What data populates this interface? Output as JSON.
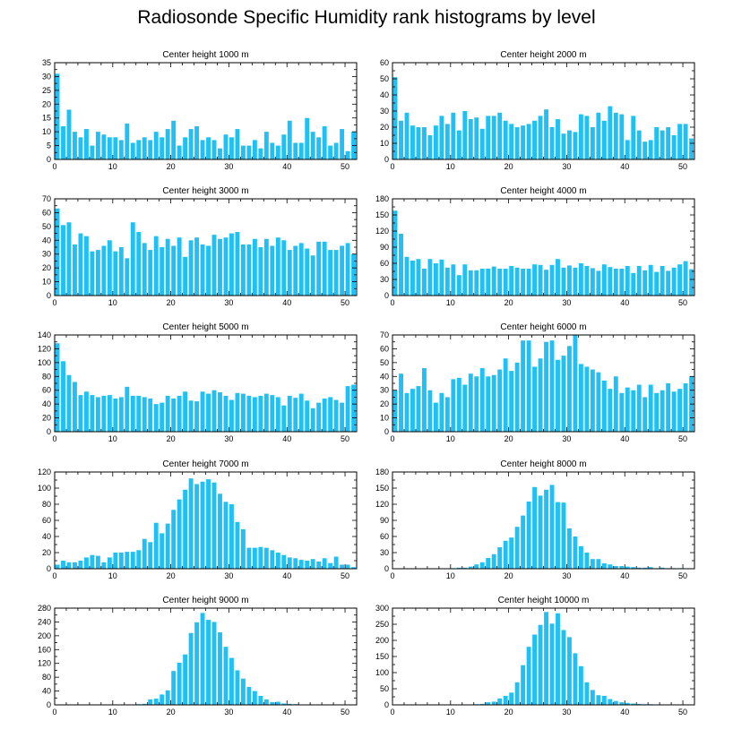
{
  "title": "Radiosonde Specific Humidity rank histograms by level",
  "colors": {
    "bar": "#1ec0f6",
    "axis": "#000000"
  },
  "chart_data": [
    {
      "type": "bar",
      "title": "Center height 1000 m",
      "xlabel": "",
      "ylabel": "",
      "xlim": [
        0,
        52
      ],
      "ylim": [
        0,
        35
      ],
      "yticks": [
        0,
        5,
        10,
        15,
        20,
        25,
        30,
        35
      ],
      "xticks": [
        0,
        10,
        20,
        30,
        40,
        50
      ],
      "values": [
        31,
        12,
        18,
        10,
        8,
        11,
        5,
        10,
        9,
        8,
        8,
        7,
        13,
        6,
        7,
        8,
        7,
        10,
        8,
        11,
        14,
        5,
        8,
        11,
        12,
        7,
        8,
        7,
        4,
        9,
        8,
        11,
        5,
        5,
        7,
        4,
        10,
        6,
        5,
        9,
        14,
        6,
        6,
        15,
        10,
        8,
        12,
        5,
        6,
        11,
        3,
        10
      ]
    },
    {
      "type": "bar",
      "title": "Center height 2000 m",
      "xlabel": "",
      "ylabel": "",
      "xlim": [
        0,
        52
      ],
      "ylim": [
        0,
        60
      ],
      "yticks": [
        0,
        10,
        20,
        30,
        40,
        50,
        60
      ],
      "xticks": [
        0,
        10,
        20,
        30,
        40,
        50
      ],
      "values": [
        51,
        24,
        29,
        21,
        20,
        20,
        15,
        21,
        27,
        22,
        29,
        18,
        30,
        25,
        26,
        19,
        27,
        27,
        29,
        24,
        22,
        20,
        21,
        22,
        24,
        27,
        31,
        20,
        25,
        16,
        18,
        17,
        28,
        27,
        20,
        29,
        24,
        33,
        29,
        28,
        12,
        27,
        18,
        11,
        12,
        20,
        18,
        20,
        15,
        22,
        22,
        13
      ]
    },
    {
      "type": "bar",
      "title": "Center height 3000 m",
      "xlabel": "",
      "ylabel": "",
      "xlim": [
        0,
        52
      ],
      "ylim": [
        0,
        70
      ],
      "yticks": [
        0,
        10,
        20,
        30,
        40,
        50,
        60,
        70
      ],
      "xticks": [
        0,
        10,
        20,
        30,
        40,
        50
      ],
      "values": [
        63,
        51,
        53,
        37,
        45,
        43,
        32,
        33,
        36,
        40,
        32,
        35,
        27,
        53,
        46,
        38,
        33,
        43,
        35,
        41,
        36,
        42,
        28,
        40,
        42,
        37,
        36,
        44,
        41,
        42,
        45,
        46,
        37,
        37,
        41,
        35,
        41,
        36,
        42,
        40,
        33,
        36,
        38,
        34,
        29,
        39,
        39,
        33,
        33,
        36,
        38,
        30
      ]
    },
    {
      "type": "bar",
      "title": "Center height 4000 m",
      "xlabel": "",
      "ylabel": "",
      "xlim": [
        0,
        52
      ],
      "ylim": [
        0,
        180
      ],
      "yticks": [
        0,
        30,
        60,
        90,
        120,
        150,
        180
      ],
      "xticks": [
        0,
        10,
        20,
        30,
        40,
        50
      ],
      "values": [
        158,
        115,
        72,
        65,
        68,
        50,
        68,
        60,
        67,
        52,
        58,
        38,
        58,
        47,
        47,
        50,
        50,
        54,
        50,
        50,
        55,
        52,
        50,
        50,
        58,
        57,
        48,
        57,
        68,
        52,
        56,
        52,
        60,
        55,
        51,
        46,
        58,
        53,
        50,
        50,
        55,
        42,
        55,
        47,
        57,
        44,
        55,
        46,
        52,
        58,
        64,
        49
      ]
    },
    {
      "type": "bar",
      "title": "Center height 5000 m",
      "xlabel": "",
      "ylabel": "",
      "xlim": [
        0,
        52
      ],
      "ylim": [
        0,
        140
      ],
      "yticks": [
        0,
        20,
        40,
        60,
        80,
        100,
        120,
        140
      ],
      "xticks": [
        0,
        10,
        20,
        30,
        40,
        50
      ],
      "values": [
        128,
        102,
        82,
        72,
        53,
        58,
        53,
        50,
        52,
        53,
        48,
        50,
        65,
        52,
        52,
        50,
        48,
        40,
        42,
        52,
        48,
        52,
        58,
        45,
        44,
        58,
        55,
        60,
        57,
        52,
        46,
        56,
        55,
        52,
        50,
        52,
        55,
        53,
        50,
        38,
        52,
        49,
        55,
        45,
        34,
        42,
        48,
        50,
        46,
        42,
        66,
        68
      ]
    },
    {
      "type": "bar",
      "title": "Center height 6000 m",
      "xlabel": "",
      "ylabel": "",
      "xlim": [
        0,
        52
      ],
      "ylim": [
        0,
        70
      ],
      "yticks": [
        0,
        10,
        20,
        30,
        40,
        50,
        60,
        70
      ],
      "xticks": [
        0,
        10,
        20,
        30,
        40,
        50
      ],
      "values": [
        30,
        42,
        28,
        31,
        33,
        46,
        30,
        21,
        28,
        25,
        38,
        39,
        34,
        42,
        40,
        46,
        40,
        41,
        45,
        53,
        44,
        50,
        66,
        66,
        47,
        53,
        65,
        66,
        52,
        55,
        62,
        70,
        49,
        47,
        45,
        43,
        37,
        31,
        40,
        28,
        32,
        30,
        34,
        25,
        34,
        28,
        30,
        35,
        29,
        31,
        35,
        40
      ]
    },
    {
      "type": "bar",
      "title": "Center height 7000 m",
      "xlabel": "",
      "ylabel": "",
      "xlim": [
        0,
        52
      ],
      "ylim": [
        0,
        120
      ],
      "yticks": [
        0,
        20,
        40,
        60,
        80,
        100,
        120
      ],
      "xticks": [
        0,
        10,
        20,
        30,
        40,
        50
      ],
      "values": [
        5,
        10,
        8,
        8,
        10,
        14,
        17,
        16,
        8,
        14,
        20,
        20,
        21,
        21,
        23,
        37,
        33,
        57,
        44,
        56,
        73,
        86,
        98,
        112,
        105,
        108,
        111,
        107,
        93,
        83,
        80,
        58,
        49,
        26,
        26,
        27,
        26,
        23,
        20,
        17,
        14,
        13,
        11,
        10,
        12,
        9,
        13,
        7,
        15,
        5,
        5,
        2
      ]
    },
    {
      "type": "bar",
      "title": "Center height 8000 m",
      "xlabel": "",
      "ylabel": "",
      "xlim": [
        0,
        52
      ],
      "ylim": [
        0,
        180
      ],
      "yticks": [
        0,
        30,
        60,
        90,
        120,
        150,
        180
      ],
      "xticks": [
        0,
        10,
        20,
        30,
        40,
        50
      ],
      "values": [
        0,
        0,
        0,
        0,
        0,
        0,
        0,
        0,
        0,
        0,
        1,
        2,
        2,
        4,
        8,
        12,
        20,
        27,
        40,
        52,
        58,
        78,
        99,
        125,
        152,
        136,
        147,
        156,
        124,
        123,
        75,
        60,
        42,
        30,
        18,
        18,
        10,
        8,
        5,
        5,
        4,
        3,
        2,
        2,
        3,
        1,
        2,
        1,
        1,
        1,
        0,
        0
      ]
    },
    {
      "type": "bar",
      "title": "Center height 9000 m",
      "xlabel": "",
      "ylabel": "",
      "xlim": [
        0,
        52
      ],
      "ylim": [
        0,
        280
      ],
      "yticks": [
        0,
        40,
        80,
        120,
        160,
        200,
        240,
        280
      ],
      "xticks": [
        0,
        10,
        20,
        30,
        40,
        50
      ],
      "values": [
        0,
        0,
        0,
        0,
        0,
        0,
        0,
        0,
        0,
        0,
        0,
        0,
        1,
        1,
        2,
        3,
        16,
        18,
        30,
        42,
        98,
        122,
        146,
        208,
        239,
        266,
        246,
        240,
        210,
        168,
        136,
        100,
        76,
        52,
        40,
        26,
        16,
        8,
        9,
        4,
        3,
        2,
        1,
        1,
        1,
        1,
        0,
        0,
        0,
        0,
        0,
        0
      ]
    },
    {
      "type": "bar",
      "title": "Center height 10000 m",
      "xlabel": "",
      "ylabel": "",
      "xlim": [
        0,
        52
      ],
      "ylim": [
        0,
        300
      ],
      "yticks": [
        0,
        50,
        100,
        150,
        200,
        250,
        300
      ],
      "xticks": [
        0,
        10,
        20,
        30,
        40,
        50
      ],
      "values": [
        0,
        0,
        0,
        0,
        0,
        0,
        0,
        0,
        0,
        0,
        0,
        0,
        1,
        1,
        2,
        3,
        8,
        10,
        20,
        28,
        38,
        70,
        123,
        180,
        218,
        248,
        288,
        252,
        284,
        232,
        210,
        160,
        120,
        70,
        46,
        30,
        28,
        18,
        12,
        8,
        6,
        4,
        3,
        2,
        2,
        1,
        1,
        0,
        0,
        0,
        0,
        0
      ]
    }
  ]
}
